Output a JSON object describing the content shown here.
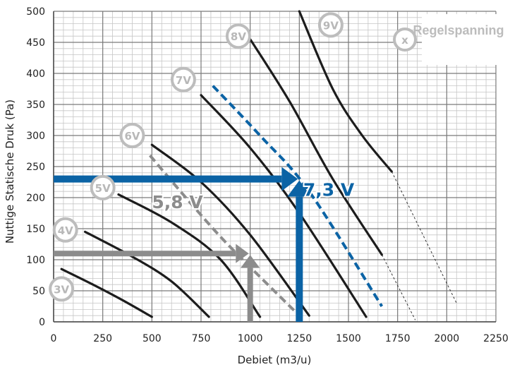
{
  "chart_data": {
    "type": "line",
    "title": "",
    "xlabel": "Debiet (m3/u)",
    "ylabel": "Nuttige Statische Druk (Pa)",
    "xlim": [
      0,
      2250
    ],
    "ylim": [
      0,
      500
    ],
    "x_ticks": [
      0,
      250,
      500,
      750,
      1000,
      1250,
      1500,
      1750,
      2000,
      2250
    ],
    "y_ticks": [
      0,
      50,
      100,
      150,
      200,
      250,
      300,
      350,
      400,
      450,
      500
    ],
    "grid": true,
    "legend": {
      "badge": "x",
      "label": "Regelspanning",
      "position": "top-right"
    },
    "colors": {
      "curve": "#1c1c1c",
      "grey": "#8c8c8c",
      "blue": "#0b63a5",
      "badge": "#bdbdbd"
    },
    "series": [
      {
        "name": "3V",
        "label_at": [
          40,
          53
        ],
        "points": [
          [
            40,
            85
          ],
          [
            200,
            60
          ],
          [
            350,
            35
          ],
          [
            500,
            8
          ]
        ]
      },
      {
        "name": "4V",
        "label_at": [
          60,
          148
        ],
        "points": [
          [
            160,
            145
          ],
          [
            400,
            105
          ],
          [
            600,
            65
          ],
          [
            790,
            8
          ]
        ]
      },
      {
        "name": "5V",
        "label_at": [
          250,
          216
        ],
        "points": [
          [
            330,
            205
          ],
          [
            600,
            160
          ],
          [
            850,
            100
          ],
          [
            1050,
            8
          ]
        ]
      },
      {
        "name": "6V",
        "label_at": [
          400,
          300
        ],
        "points": [
          [
            500,
            285
          ],
          [
            750,
            225
          ],
          [
            1000,
            140
          ],
          [
            1300,
            10
          ]
        ]
      },
      {
        "name": "7V",
        "label_at": [
          660,
          390
        ],
        "points": [
          [
            750,
            365
          ],
          [
            1000,
            280
          ],
          [
            1250,
            175
          ],
          [
            1590,
            8
          ]
        ]
      },
      {
        "name": "8V",
        "label_at": [
          940,
          460
        ],
        "points": [
          [
            990,
            460
          ],
          [
            1200,
            355
          ],
          [
            1420,
            230
          ],
          [
            1670,
            108
          ]
        ],
        "tail": [
          [
            1670,
            108
          ],
          [
            1840,
            3
          ]
        ]
      },
      {
        "name": "9V",
        "label_at": [
          1410,
          478
        ],
        "points": [
          [
            1250,
            500
          ],
          [
            1420,
            375
          ],
          [
            1570,
            300
          ],
          [
            1720,
            242
          ]
        ],
        "tail": [
          [
            1720,
            242
          ],
          [
            2050,
            30
          ]
        ]
      }
    ],
    "operating_points": [
      {
        "label": "5,8 V",
        "color": "grey",
        "label_at": [
          500,
          183
        ],
        "flow": 1000,
        "pressure": 110,
        "curve": [
          [
            490,
            268
          ],
          [
            700,
            190
          ],
          [
            900,
            120
          ],
          [
            1250,
            10
          ]
        ]
      },
      {
        "label": "7,3 V",
        "color": "blue",
        "label_at": [
          1270,
          203
        ],
        "flow": 1250,
        "pressure": 230,
        "curve": [
          [
            810,
            380
          ],
          [
            1050,
            300
          ],
          [
            1300,
            210
          ],
          [
            1670,
            25
          ]
        ]
      }
    ]
  }
}
